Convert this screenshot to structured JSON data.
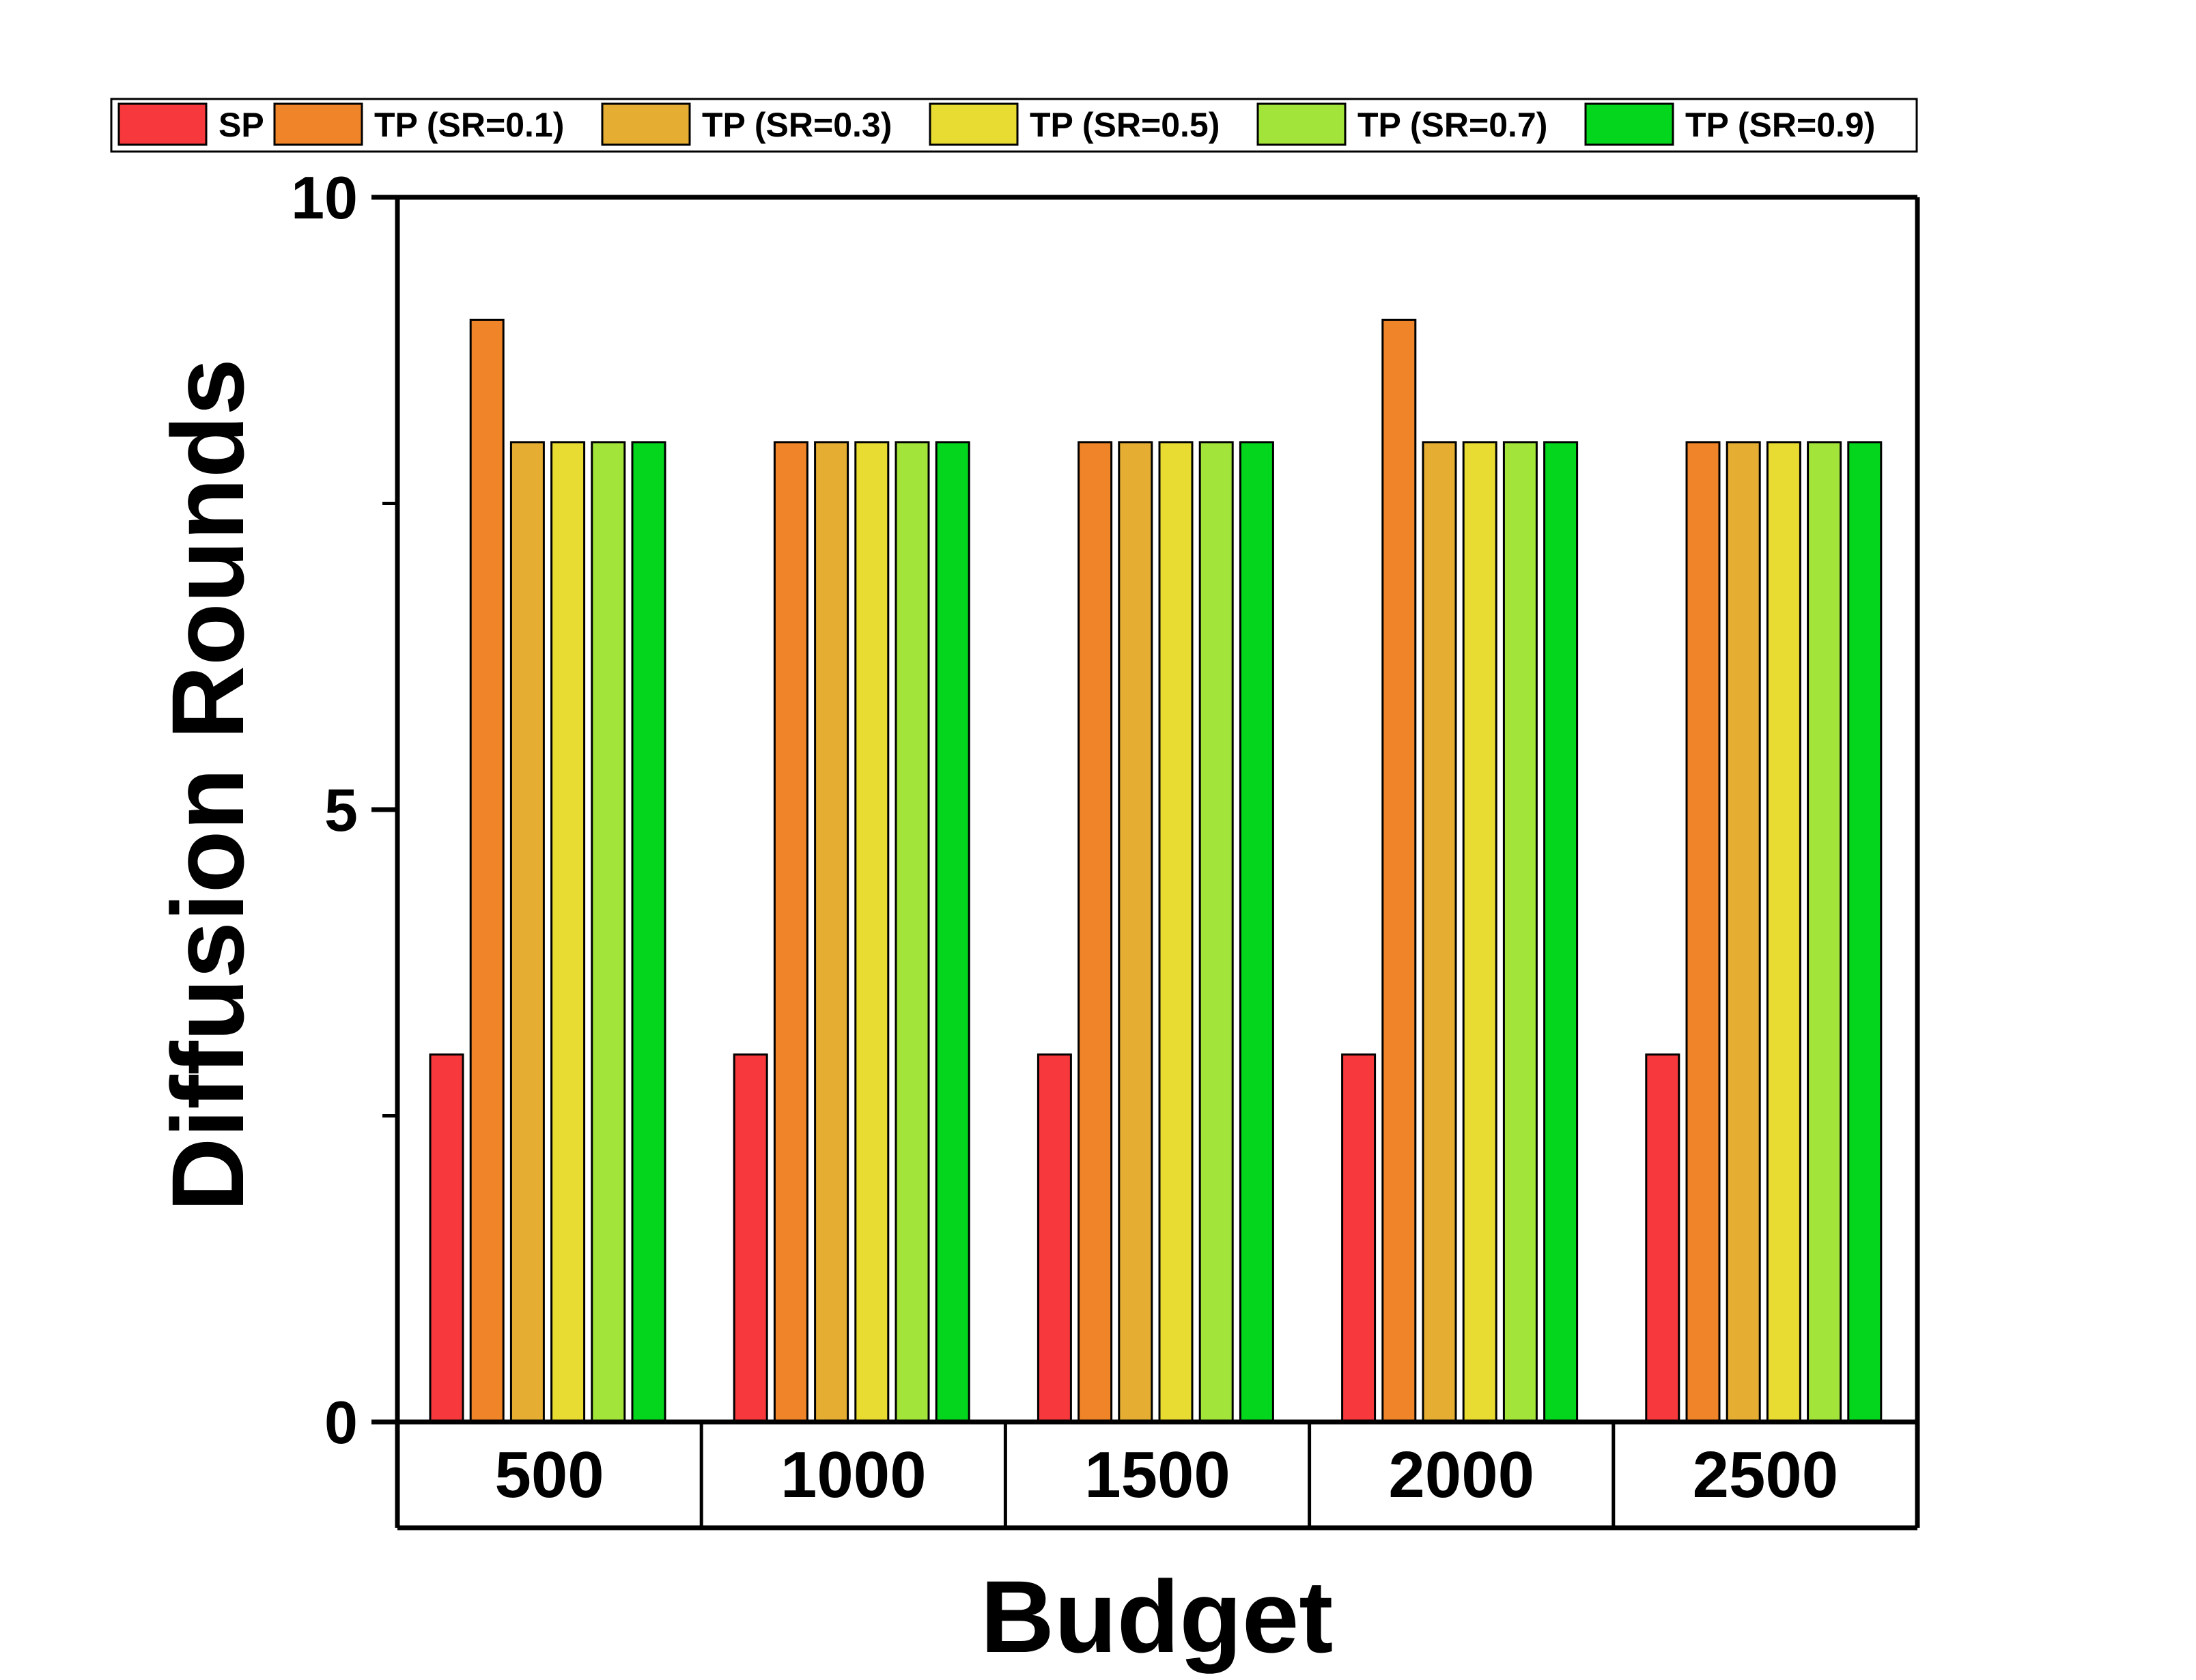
{
  "chart_data": {
    "type": "bar",
    "title": "",
    "xlabel": "Budget",
    "ylabel": "Diffusion Rounds",
    "categories": [
      "500",
      "1000",
      "1500",
      "2000",
      "2500"
    ],
    "ylim": [
      0,
      10
    ],
    "yticks": [
      0,
      5,
      10
    ],
    "yminor_ticks": [
      2.5,
      7.5
    ],
    "grid": false,
    "legend_position": "top",
    "series": [
      {
        "name": "SP",
        "color": "#f7393d",
        "values": [
          3,
          3,
          3,
          3,
          3
        ]
      },
      {
        "name": "TP (SR=0.1)",
        "color": "#ef8428",
        "values": [
          9,
          8,
          8,
          9,
          8
        ]
      },
      {
        "name": "TP (SR=0.3)",
        "color": "#e5ae33",
        "values": [
          8,
          8,
          8,
          8,
          8
        ]
      },
      {
        "name": "TP (SR=0.5)",
        "color": "#e8dc32",
        "values": [
          8,
          8,
          8,
          8,
          8
        ]
      },
      {
        "name": "TP (SR=0.7)",
        "color": "#a3e43b",
        "values": [
          8,
          8,
          8,
          8,
          8
        ]
      },
      {
        "name": "TP (SR=0.9)",
        "color": "#03d61d",
        "values": [
          8,
          8,
          8,
          8,
          8
        ]
      }
    ]
  }
}
